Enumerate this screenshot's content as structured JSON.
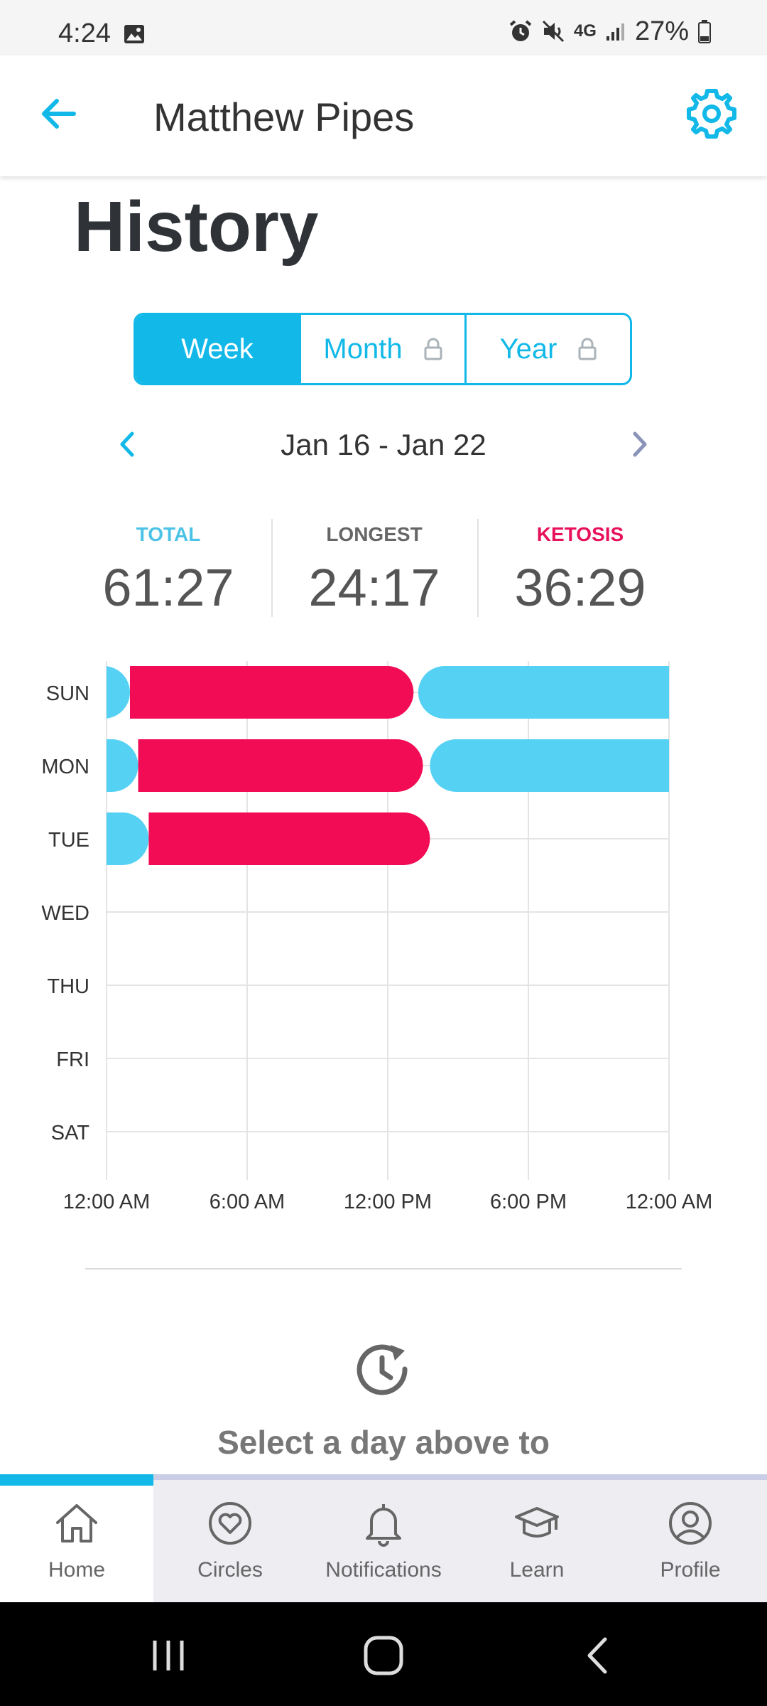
{
  "status_bar": {
    "time": "4:24",
    "network": "4G",
    "battery": "27%"
  },
  "header": {
    "title": "Matthew Pipes"
  },
  "page": {
    "title": "History"
  },
  "segment": {
    "options": [
      {
        "label": "Week",
        "locked": false,
        "selected": true
      },
      {
        "label": "Month",
        "locked": true,
        "selected": false
      },
      {
        "label": "Year",
        "locked": true,
        "selected": false
      }
    ]
  },
  "date_nav": {
    "range": "Jan 16  -  Jan 22"
  },
  "stats": {
    "total": {
      "label": "TOTAL",
      "value": "61:27",
      "color": "#4cc3e6"
    },
    "longest": {
      "label": "LONGEST",
      "value": "24:17",
      "color": "#666666"
    },
    "ketosis": {
      "label": "KETOSIS",
      "value": "36:29",
      "color": "#e8125c"
    }
  },
  "chart_data": {
    "type": "bar",
    "orientation": "horizontal",
    "categories": [
      "SUN",
      "MON",
      "TUE",
      "WED",
      "THU",
      "FRI",
      "SAT"
    ],
    "x_tick_labels": [
      "12:00 AM",
      "6:00 AM",
      "12:00 PM",
      "6:00 PM",
      "12:00 AM"
    ],
    "x_unit": "hour of day",
    "xlim": [
      0,
      24
    ],
    "grid": true,
    "colors": {
      "fasting": "#55d1f4",
      "ketosis": "#f20b55"
    },
    "segments": [
      {
        "day": "SUN",
        "kind": "fasting",
        "start": 0,
        "end": 1.0
      },
      {
        "day": "SUN",
        "kind": "ketosis",
        "start": 1.0,
        "end": 13.1
      },
      {
        "day": "SUN",
        "kind": "fasting",
        "start": 13.3,
        "end": 24
      },
      {
        "day": "MON",
        "kind": "fasting",
        "start": 0,
        "end": 1.35
      },
      {
        "day": "MON",
        "kind": "ketosis",
        "start": 1.35,
        "end": 13.5
      },
      {
        "day": "MON",
        "kind": "fasting",
        "start": 13.8,
        "end": 24
      },
      {
        "day": "TUE",
        "kind": "fasting",
        "start": 0,
        "end": 1.8
      },
      {
        "day": "TUE",
        "kind": "ketosis",
        "start": 1.8,
        "end": 13.8
      }
    ]
  },
  "details": {
    "message": "Select a day above to"
  },
  "bottom_nav": {
    "items": [
      {
        "label": "Home",
        "icon": "home-icon",
        "active": true
      },
      {
        "label": "Circles",
        "icon": "heart-circle-icon",
        "active": false
      },
      {
        "label": "Notifications",
        "icon": "bell-icon",
        "active": false
      },
      {
        "label": "Learn",
        "icon": "graduation-cap-icon",
        "active": false
      },
      {
        "label": "Profile",
        "icon": "user-circle-icon",
        "active": false
      }
    ]
  },
  "theme": {
    "accent": "#12b9e8"
  }
}
